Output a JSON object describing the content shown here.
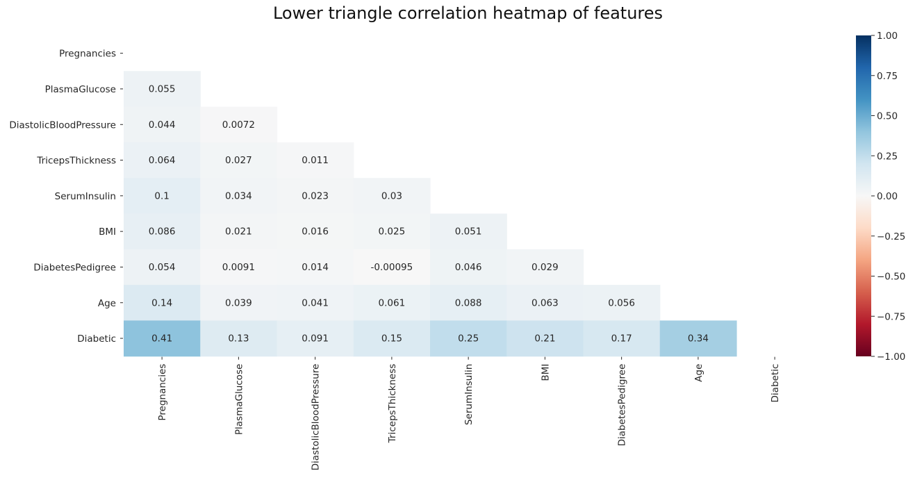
{
  "chart_data": {
    "type": "heatmap",
    "title": "Lower triangle correlation heatmap of features",
    "variables": [
      "Pregnancies",
      "PlasmaGlucose",
      "DiastolicBloodPressure",
      "TricepsThickness",
      "SerumInsulin",
      "BMI",
      "DiabetesPedigree",
      "Age",
      "Diabetic"
    ],
    "mask": "upper triangle including diagonal",
    "cells": [
      {
        "row": "PlasmaGlucose",
        "col": "Pregnancies",
        "value": 0.055,
        "label": "0.055"
      },
      {
        "row": "DiastolicBloodPressure",
        "col": "Pregnancies",
        "value": 0.044,
        "label": "0.044"
      },
      {
        "row": "DiastolicBloodPressure",
        "col": "PlasmaGlucose",
        "value": 0.0072,
        "label": "0.0072"
      },
      {
        "row": "TricepsThickness",
        "col": "Pregnancies",
        "value": 0.064,
        "label": "0.064"
      },
      {
        "row": "TricepsThickness",
        "col": "PlasmaGlucose",
        "value": 0.027,
        "label": "0.027"
      },
      {
        "row": "TricepsThickness",
        "col": "DiastolicBloodPressure",
        "value": 0.011,
        "label": "0.011"
      },
      {
        "row": "SerumInsulin",
        "col": "Pregnancies",
        "value": 0.1,
        "label": "0.1"
      },
      {
        "row": "SerumInsulin",
        "col": "PlasmaGlucose",
        "value": 0.034,
        "label": "0.034"
      },
      {
        "row": "SerumInsulin",
        "col": "DiastolicBloodPressure",
        "value": 0.023,
        "label": "0.023"
      },
      {
        "row": "SerumInsulin",
        "col": "TricepsThickness",
        "value": 0.03,
        "label": "0.03"
      },
      {
        "row": "BMI",
        "col": "Pregnancies",
        "value": 0.086,
        "label": "0.086"
      },
      {
        "row": "BMI",
        "col": "PlasmaGlucose",
        "value": 0.021,
        "label": "0.021"
      },
      {
        "row": "BMI",
        "col": "DiastolicBloodPressure",
        "value": 0.016,
        "label": "0.016"
      },
      {
        "row": "BMI",
        "col": "TricepsThickness",
        "value": 0.025,
        "label": "0.025"
      },
      {
        "row": "BMI",
        "col": "SerumInsulin",
        "value": 0.051,
        "label": "0.051"
      },
      {
        "row": "DiabetesPedigree",
        "col": "Pregnancies",
        "value": 0.054,
        "label": "0.054"
      },
      {
        "row": "DiabetesPedigree",
        "col": "PlasmaGlucose",
        "value": 0.0091,
        "label": "0.0091"
      },
      {
        "row": "DiabetesPedigree",
        "col": "DiastolicBloodPressure",
        "value": 0.014,
        "label": "0.014"
      },
      {
        "row": "DiabetesPedigree",
        "col": "TricepsThickness",
        "value": -0.00095,
        "label": "-0.00095"
      },
      {
        "row": "DiabetesPedigree",
        "col": "SerumInsulin",
        "value": 0.046,
        "label": "0.046"
      },
      {
        "row": "DiabetesPedigree",
        "col": "BMI",
        "value": 0.029,
        "label": "0.029"
      },
      {
        "row": "Age",
        "col": "Pregnancies",
        "value": 0.14,
        "label": "0.14"
      },
      {
        "row": "Age",
        "col": "PlasmaGlucose",
        "value": 0.039,
        "label": "0.039"
      },
      {
        "row": "Age",
        "col": "DiastolicBloodPressure",
        "value": 0.041,
        "label": "0.041"
      },
      {
        "row": "Age",
        "col": "TricepsThickness",
        "value": 0.061,
        "label": "0.061"
      },
      {
        "row": "Age",
        "col": "SerumInsulin",
        "value": 0.088,
        "label": "0.088"
      },
      {
        "row": "Age",
        "col": "BMI",
        "value": 0.063,
        "label": "0.063"
      },
      {
        "row": "Age",
        "col": "DiabetesPedigree",
        "value": 0.056,
        "label": "0.056"
      },
      {
        "row": "Diabetic",
        "col": "Pregnancies",
        "value": 0.41,
        "label": "0.41"
      },
      {
        "row": "Diabetic",
        "col": "PlasmaGlucose",
        "value": 0.13,
        "label": "0.13"
      },
      {
        "row": "Diabetic",
        "col": "DiastolicBloodPressure",
        "value": 0.091,
        "label": "0.091"
      },
      {
        "row": "Diabetic",
        "col": "TricepsThickness",
        "value": 0.15,
        "label": "0.15"
      },
      {
        "row": "Diabetic",
        "col": "SerumInsulin",
        "value": 0.25,
        "label": "0.25"
      },
      {
        "row": "Diabetic",
        "col": "BMI",
        "value": 0.21,
        "label": "0.21"
      },
      {
        "row": "Diabetic",
        "col": "DiabetesPedigree",
        "value": 0.17,
        "label": "0.17"
      },
      {
        "row": "Diabetic",
        "col": "Age",
        "value": 0.34,
        "label": "0.34"
      }
    ],
    "colorbar": {
      "colormap": "RdBu",
      "vmin": -1.0,
      "vmax": 1.0,
      "ticks": [
        1.0,
        0.75,
        0.5,
        0.25,
        0.0,
        -0.25,
        -0.5,
        -0.75,
        -1.0
      ],
      "tick_labels": [
        "1.00",
        "0.75",
        "0.50",
        "0.25",
        "0.00",
        "−0.25",
        "−0.50",
        "−0.75",
        "−1.00"
      ]
    },
    "colors": {
      "text": "#262626",
      "background": "#ffffff"
    }
  }
}
